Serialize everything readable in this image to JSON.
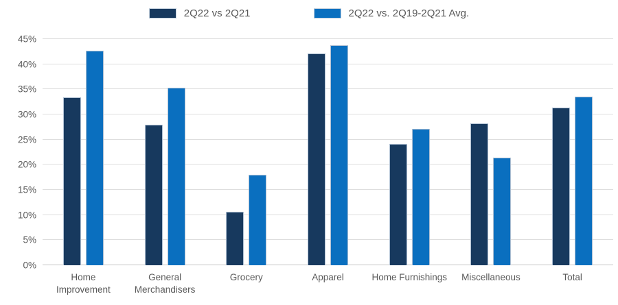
{
  "legend": [
    {
      "label": "2Q22 vs 2Q21",
      "color": "#17395E"
    },
    {
      "label": "2Q22 vs. 2Q19-2Q21 Avg.",
      "color": "#0A6FBF"
    }
  ],
  "axis": {
    "yticks": [
      "0%",
      "5%",
      "10%",
      "15%",
      "20%",
      "25%",
      "30%",
      "35%",
      "40%",
      "45%"
    ],
    "text_color": "#595959"
  },
  "chart_data": {
    "type": "bar",
    "title": "",
    "xlabel": "",
    "ylabel": "",
    "categories": [
      "Home Improvement",
      "General Merchandisers",
      "Grocery",
      "Apparel",
      "Home Furnishings",
      "Miscellaneous",
      "Total"
    ],
    "series": [
      {
        "name": "2Q22 vs 2Q21",
        "color": "#17395E",
        "values": [
          33.4,
          27.9,
          10.7,
          42.2,
          24.2,
          28.2,
          31.3
        ]
      },
      {
        "name": "2Q22 vs. 2Q19-2Q21 Avg.",
        "color": "#0A6FBF",
        "values": [
          42.7,
          35.3,
          18.0,
          43.8,
          27.1,
          21.4,
          33.5
        ]
      }
    ],
    "ylim": [
      0,
      45
    ],
    "ytick_step": 5,
    "ytick_format": "percent",
    "grid": true,
    "gridline_color": "#DEDEDE",
    "bar_border_color": "#AEBFD2",
    "legend_position": "top"
  }
}
